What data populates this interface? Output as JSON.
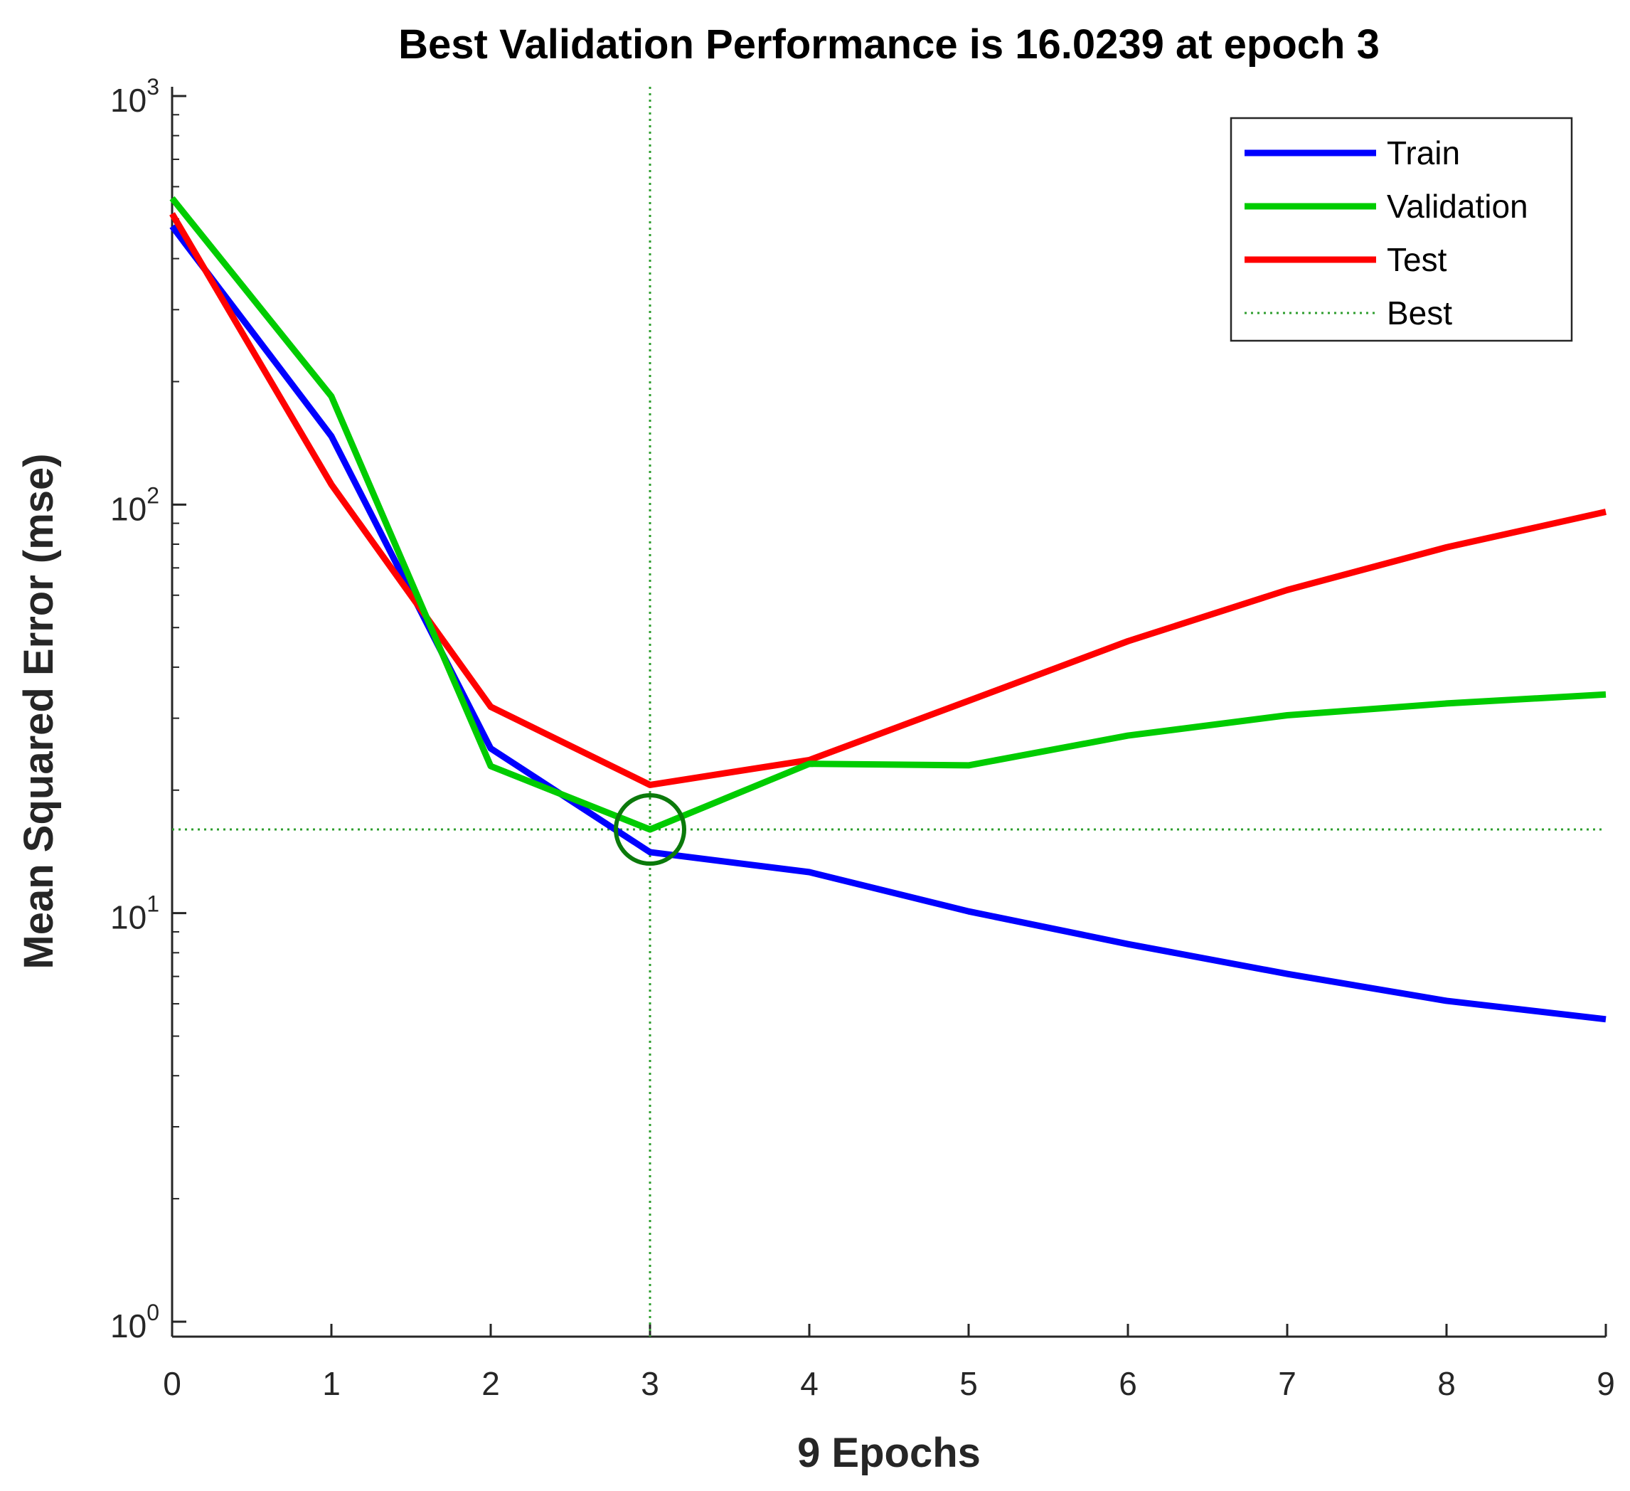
{
  "chart_data": {
    "type": "line",
    "title": "Best Validation Performance is 16.0239 at epoch 3",
    "xlabel": "9 Epochs",
    "ylabel": "Mean Squared Error  (mse)",
    "yscale": "log",
    "xlim": [
      0,
      9
    ],
    "ylim": [
      1,
      1000
    ],
    "x": [
      0,
      1,
      2,
      3,
      4,
      5,
      6,
      7,
      8,
      9
    ],
    "x_tick_labels": [
      "0",
      "1",
      "2",
      "3",
      "4",
      "5",
      "6",
      "7",
      "8",
      "9"
    ],
    "y_ticks": [
      {
        "value": 1,
        "base": "10",
        "exp": "0"
      },
      {
        "value": 10,
        "base": "10",
        "exp": "1"
      },
      {
        "value": 100,
        "base": "10",
        "exp": "2"
      },
      {
        "value": 1000,
        "base": "10",
        "exp": "3"
      }
    ],
    "series": [
      {
        "name": "Train",
        "color": "#0000ff",
        "values": [
          480,
          147,
          25.3,
          14.1,
          12.6,
          10.1,
          8.4,
          7.1,
          6.1,
          5.5
        ]
      },
      {
        "name": "Validation",
        "color": "#00cc00",
        "values": [
          562,
          184,
          22.9,
          16.0239,
          23.2,
          23.0,
          27.2,
          30.5,
          32.6,
          34.3
        ]
      },
      {
        "name": "Test",
        "color": "#ff0000",
        "values": [
          515,
          112,
          32,
          20.6,
          23.7,
          33.1,
          46.3,
          61.8,
          78.6,
          96
        ]
      }
    ],
    "best": {
      "name": "Best",
      "epoch": 3,
      "value": 16.0239,
      "color": "#2e9e2e",
      "marker_color": "#0b7a0b"
    },
    "legend_placement": "top-right",
    "grid": false
  }
}
